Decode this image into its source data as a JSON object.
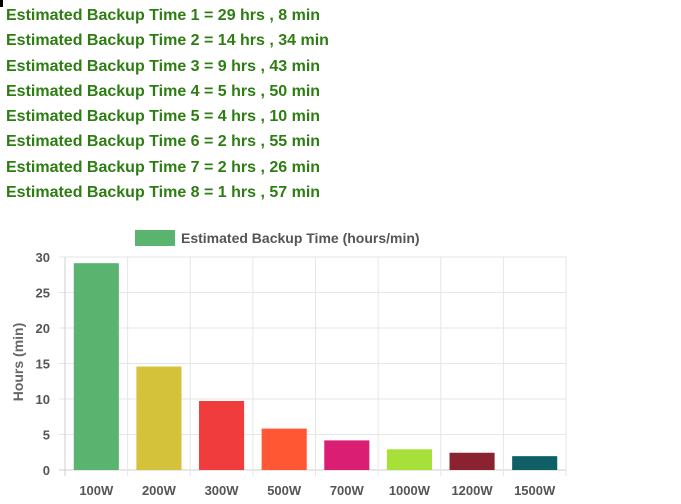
{
  "results": [
    "Estimated Backup Time 1 = 29 hrs , 8 min",
    "Estimated Backup Time 2 = 14 hrs , 34 min",
    "Estimated Backup Time 3 = 9 hrs , 43 min",
    "Estimated Backup Time 4 = 5 hrs , 50 min",
    "Estimated Backup Time 5 = 4 hrs , 10 min",
    "Estimated Backup Time 6 = 2 hrs , 55 min",
    "Estimated Backup Time 7 = 2 hrs , 26 min",
    "Estimated Backup Time 8 = 1 hrs , 57 min"
  ],
  "chart_data": {
    "type": "bar",
    "categories": [
      "100W",
      "200W",
      "300W",
      "500W",
      "700W",
      "1000W",
      "1200W",
      "1500W"
    ],
    "series": [
      {
        "name": "Estimated Backup Time (hours/min)",
        "values": [
          29.13,
          14.57,
          9.72,
          5.83,
          4.17,
          2.92,
          2.43,
          1.95
        ]
      }
    ],
    "bar_colors": [
      "#5bb370",
      "#d4c23a",
      "#f03c3c",
      "#ff5733",
      "#d91e73",
      "#a8e03a",
      "#8b2230",
      "#0f5f66"
    ],
    "legend_color": "#5bb370",
    "ylabel": "Hours (min)",
    "xlabel": "",
    "ylim": [
      0,
      30
    ],
    "yticks": [
      0,
      5,
      10,
      15,
      20,
      25,
      30
    ],
    "grid": true,
    "legend_position": "top"
  }
}
